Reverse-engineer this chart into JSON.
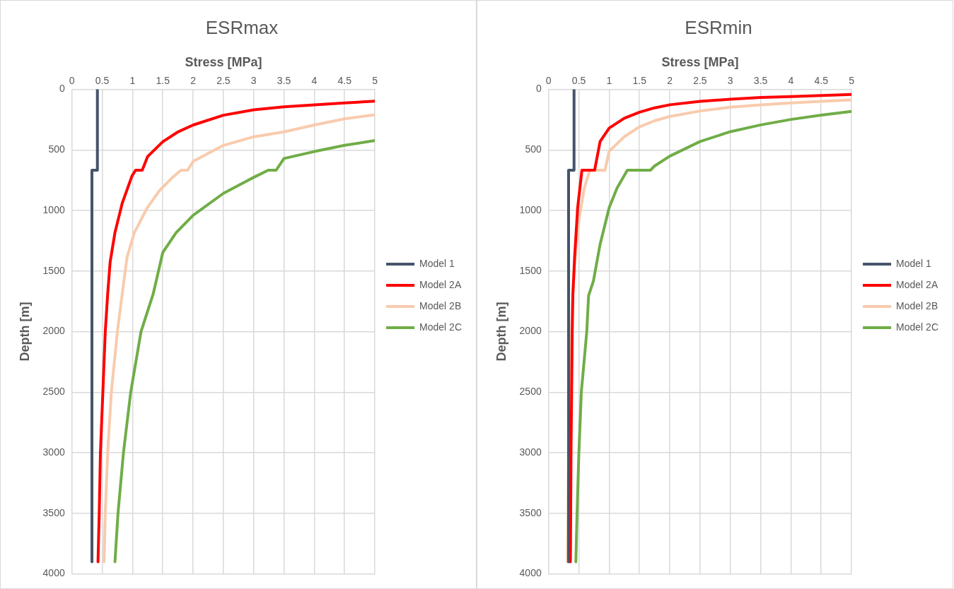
{
  "chart_data": [
    {
      "type": "line",
      "title": "ESRmax",
      "xlabel": "Stress [MPa]",
      "ylabel": "Depth [m]",
      "xlim": [
        0,
        5
      ],
      "xticks": [
        0,
        0.5,
        1,
        1.5,
        2,
        2.5,
        3,
        3.5,
        4,
        4.5,
        5
      ],
      "ylim": [
        4000,
        0
      ],
      "yticks": [
        0,
        500,
        1000,
        1500,
        2000,
        2500,
        3000,
        3500,
        4000
      ],
      "grid": true,
      "legend": "right",
      "marker": "none",
      "line_style": "solid",
      "series": [
        {
          "name": "Model 1",
          "color": "#44546a",
          "x": [
            0.42,
            0.42,
            0.33,
            0.33
          ],
          "values": [
            0,
            667,
            667,
            3900
          ]
        },
        {
          "name": "Model 2A",
          "color": "#ff0000",
          "x": [
            5,
            4.5,
            3.5,
            3,
            2.5,
            2,
            1.75,
            1.5,
            1.25,
            1.16,
            1.05,
            0.99,
            0.83,
            0.71,
            0.63,
            0.59,
            0.55,
            0.51,
            0.47,
            0.45,
            0.43
          ],
          "values": [
            97,
            112,
            144,
            168,
            213,
            294,
            351,
            432,
            554,
            667,
            667,
            716,
            939,
            1182,
            1426,
            1689,
            2000,
            2500,
            3000,
            3500,
            3900
          ]
        },
        {
          "name": "Model 2B",
          "color": "#f8cbad",
          "x": [
            5,
            4.5,
            4,
            3.5,
            3,
            2.5,
            2,
            1.91,
            1.8,
            1.64,
            1.44,
            1.24,
            1.03,
            0.91,
            0.84,
            0.75,
            0.65,
            0.59,
            0.55,
            0.53
          ],
          "values": [
            209,
            243,
            294,
            351,
            391,
            462,
            594,
            667,
            667,
            736,
            838,
            980,
            1182,
            1385,
            1649,
            2000,
            2500,
            3000,
            3500,
            3900
          ]
        },
        {
          "name": "Model 2C",
          "color": "#70ad47",
          "x": [
            5,
            4.5,
            4,
            3.5,
            3.37,
            3.24,
            3,
            2.5,
            2,
            1.72,
            1.5,
            1.34,
            1.14,
            0.97,
            0.85,
            0.76,
            0.71
          ],
          "values": [
            422,
            462,
            513,
            570,
            667,
            667,
            726,
            858,
            1040,
            1182,
            1345,
            1690,
            2000,
            2500,
            3000,
            3500,
            3900
          ]
        }
      ]
    },
    {
      "type": "line",
      "title": "ESRmin",
      "xlabel": "Stress [MPa]",
      "ylabel": "Depth [m]",
      "xlim": [
        0,
        5
      ],
      "xticks": [
        0,
        0.5,
        1,
        1.5,
        2,
        2.5,
        3,
        3.5,
        4,
        4.5,
        5
      ],
      "ylim": [
        4000,
        0
      ],
      "yticks": [
        0,
        500,
        1000,
        1500,
        2000,
        2500,
        3000,
        3500,
        4000
      ],
      "grid": true,
      "legend": "right",
      "marker": "none",
      "line_style": "solid",
      "series": [
        {
          "name": "Model 1",
          "color": "#44546a",
          "x": [
            0.42,
            0.42,
            0.33,
            0.33
          ],
          "values": [
            0,
            667,
            667,
            3900
          ]
        },
        {
          "name": "Model 2A",
          "color": "#ff0000",
          "x": [
            5,
            4.5,
            4,
            3.5,
            3,
            2.5,
            2,
            1.75,
            1.5,
            1.25,
            1,
            0.85,
            0.76,
            0.55,
            0.48,
            0.43,
            0.4,
            0.39,
            0.38,
            0.37,
            0.365,
            0.36
          ],
          "values": [
            42,
            51,
            59,
            67,
            81,
            99,
            127,
            152,
            188,
            238,
            319,
            430,
            667,
            667,
            976,
            1380,
            1703,
            2000,
            2500,
            3000,
            3500,
            3900
          ]
        },
        {
          "name": "Model 2B",
          "color": "#f8cbad",
          "x": [
            5,
            4.5,
            4,
            3.5,
            3,
            2.5,
            2,
            1.75,
            1.5,
            1.25,
            1,
            0.93,
            0.68,
            0.59,
            0.5,
            0.44,
            0.4,
            0.38,
            0.36,
            0.33,
            0.32,
            0.31
          ],
          "values": [
            87,
            99,
            111,
            127,
            147,
            178,
            224,
            259,
            309,
            390,
            511,
            667,
            667,
            814,
            1077,
            1380,
            1683,
            2000,
            2500,
            3000,
            3500,
            3900
          ]
        },
        {
          "name": "Model 2C",
          "color": "#70ad47",
          "x": [
            5,
            4.5,
            4,
            3.5,
            3,
            2.5,
            2,
            1.75,
            1.68,
            1.3,
            1.13,
            1,
            0.85,
            0.74,
            0.66,
            0.63,
            0.54,
            0.5,
            0.47,
            0.45
          ],
          "values": [
            182,
            212,
            248,
            293,
            349,
            430,
            551,
            632,
            667,
            667,
            814,
            976,
            1279,
            1582,
            1703,
            2000,
            2500,
            3000,
            3500,
            3900
          ]
        }
      ]
    }
  ]
}
